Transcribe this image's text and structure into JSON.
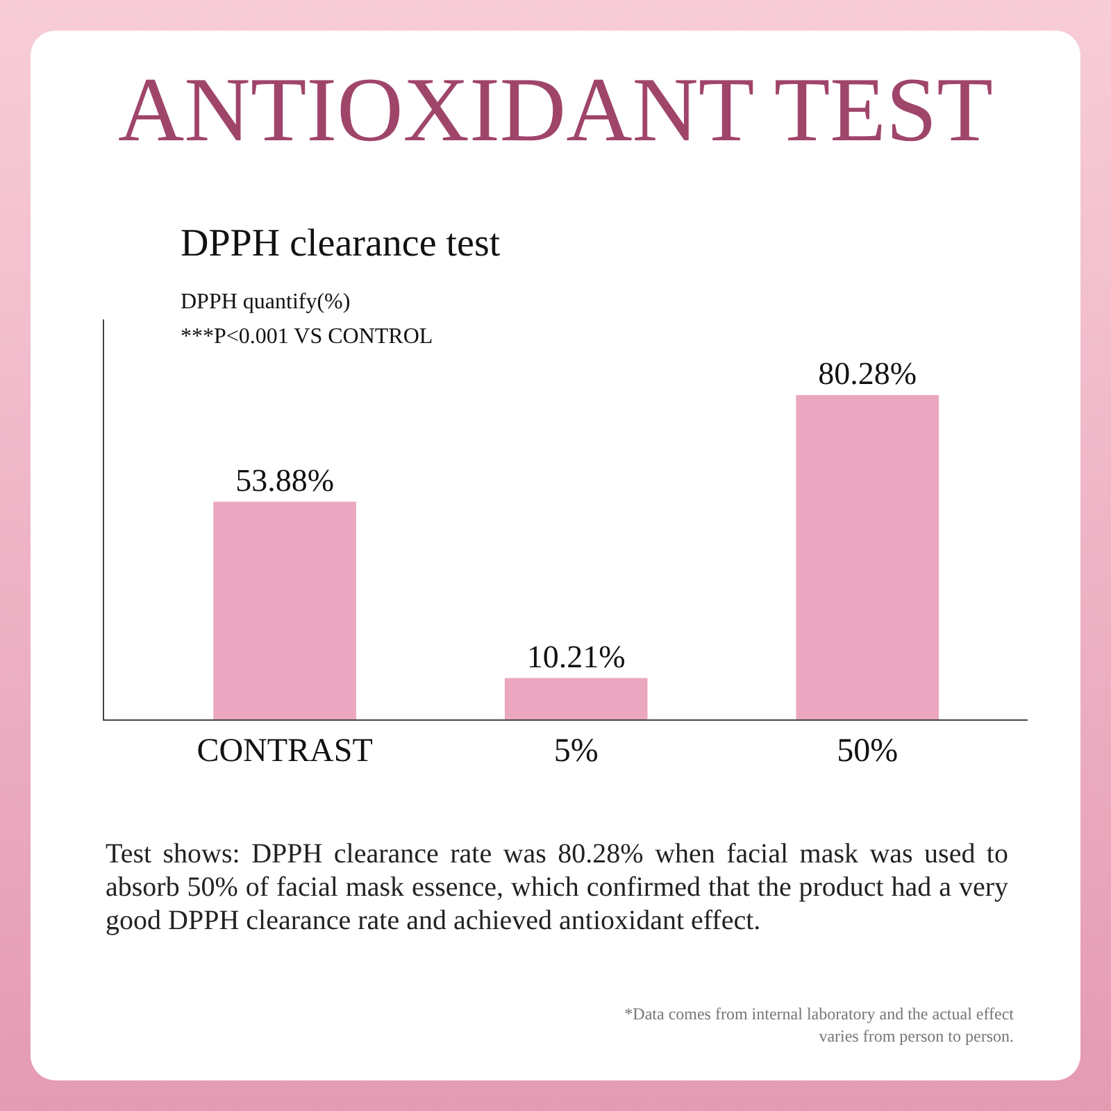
{
  "chart_data": {
    "type": "bar",
    "title": "ANTIOXIDANT TEST",
    "subtitle": "DPPH clearance test",
    "ylabel": "DPPH quantify(%)",
    "categories": [
      "CONTRAST",
      "5%",
      "50%"
    ],
    "values": [
      53.88,
      10.21,
      80.28
    ],
    "value_labels": [
      "53.88%",
      "10.21%",
      "80.28%"
    ],
    "color": "#eaa7bf",
    "ylim": [
      0,
      99
    ],
    "grid": false,
    "legend": false,
    "annotations": [
      "***P<0.001 VS CONTROL",
      "Test shows: DPPH clearance rate was 80.28% when facial mask was used to absorb 50% of facial mask essence, which confirmed that the product had a very good DPPH clearance rate and achieved antioxidant effect.",
      "*Data comes from internal laboratory and the actual effect varies from person to person."
    ]
  }
}
